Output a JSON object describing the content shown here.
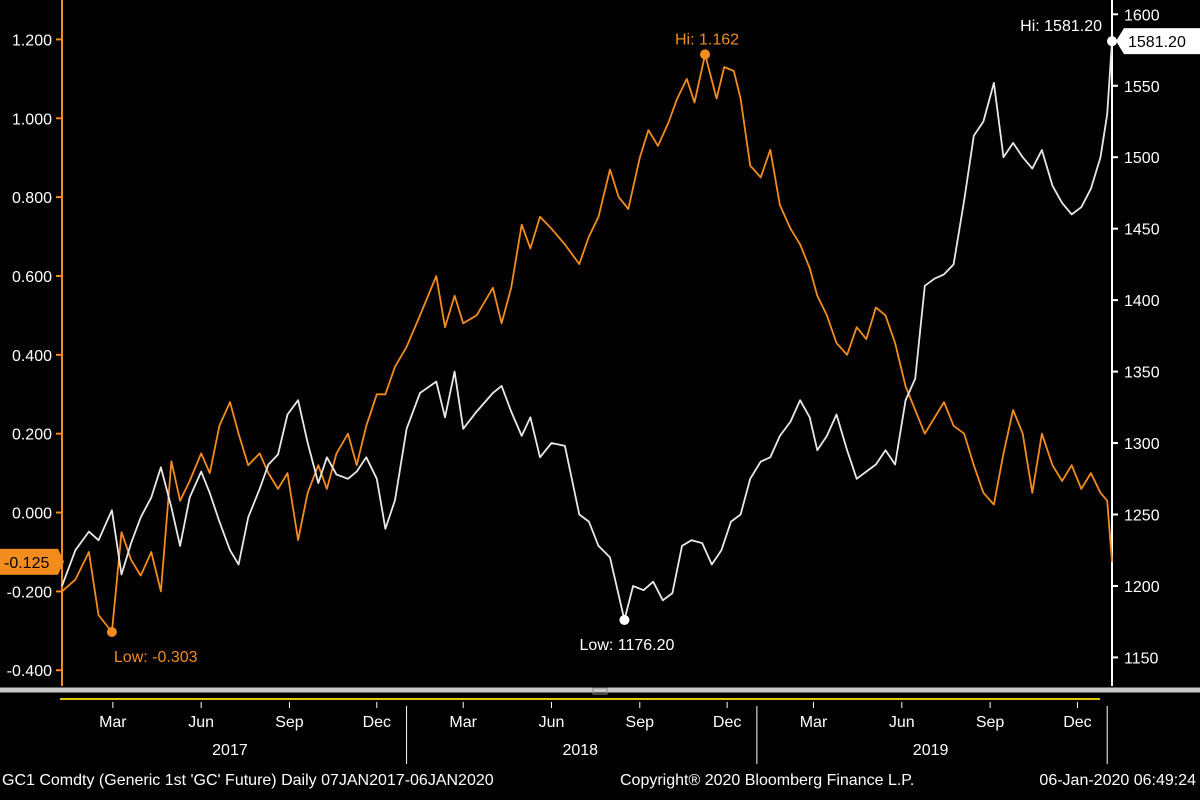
{
  "chart_data": {
    "type": "line",
    "grid": false,
    "x_range": [
      "2017-01-07",
      "2020-01-06"
    ],
    "left_axis": {
      "ylim": [
        -0.44,
        1.3
      ],
      "ticks": [
        "-0.400",
        "-0.200",
        "0.000",
        "0.200",
        "0.400",
        "0.600",
        "0.800",
        "1.000",
        "1.200"
      ]
    },
    "right_axis": {
      "ylim": [
        1130,
        1610
      ],
      "ticks": [
        "1150",
        "1200",
        "1250",
        "1300",
        "1350",
        "1400",
        "1450",
        "1500",
        "1550",
        "1600"
      ]
    },
    "month_ticks": [
      {
        "label": "Mar",
        "date": "2017-03-01"
      },
      {
        "label": "Jun",
        "date": "2017-06-01"
      },
      {
        "label": "Sep",
        "date": "2017-09-01"
      },
      {
        "label": "Dec",
        "date": "2017-12-01"
      },
      {
        "label": "Mar",
        "date": "2018-03-01"
      },
      {
        "label": "Jun",
        "date": "2018-06-01"
      },
      {
        "label": "Sep",
        "date": "2018-09-01"
      },
      {
        "label": "Dec",
        "date": "2018-12-01"
      },
      {
        "label": "Mar",
        "date": "2019-03-01"
      },
      {
        "label": "Jun",
        "date": "2019-06-01"
      },
      {
        "label": "Sep",
        "date": "2019-09-01"
      },
      {
        "label": "Dec",
        "date": "2019-12-01"
      }
    ],
    "year_labels": [
      {
        "label": "2017",
        "date": "2017-07-01"
      },
      {
        "label": "2018",
        "date": "2018-07-01"
      },
      {
        "label": "2019",
        "date": "2019-07-01"
      }
    ],
    "year_dividers": [
      "2018-01-01",
      "2019-01-01",
      "2020-01-01"
    ],
    "series": [
      {
        "color": "#f28c1e",
        "axis": "left",
        "last_value": -0.125,
        "last_label": "-0.125",
        "high": {
          "date": "2018-11-08",
          "value": 1.162,
          "label": "Hi: 1.162"
        },
        "low": {
          "date": "2017-02-28",
          "value": -0.303,
          "label": "Low: -0.303"
        },
        "points": [
          [
            "2017-01-07",
            -0.2
          ],
          [
            "2017-01-21",
            -0.17
          ],
          [
            "2017-02-04",
            -0.1
          ],
          [
            "2017-02-14",
            -0.26
          ],
          [
            "2017-02-28",
            -0.303
          ],
          [
            "2017-03-10",
            -0.05
          ],
          [
            "2017-03-20",
            -0.12
          ],
          [
            "2017-03-30",
            -0.16
          ],
          [
            "2017-04-10",
            -0.1
          ],
          [
            "2017-04-20",
            -0.2
          ],
          [
            "2017-05-01",
            0.13
          ],
          [
            "2017-05-10",
            0.03
          ],
          [
            "2017-05-20",
            0.08
          ],
          [
            "2017-06-01",
            0.15
          ],
          [
            "2017-06-10",
            0.1
          ],
          [
            "2017-06-20",
            0.22
          ],
          [
            "2017-07-01",
            0.28
          ],
          [
            "2017-07-10",
            0.2
          ],
          [
            "2017-07-20",
            0.12
          ],
          [
            "2017-08-01",
            0.15
          ],
          [
            "2017-08-10",
            0.1
          ],
          [
            "2017-08-20",
            0.06
          ],
          [
            "2017-08-30",
            0.1
          ],
          [
            "2017-09-10",
            -0.07
          ],
          [
            "2017-09-20",
            0.05
          ],
          [
            "2017-10-01",
            0.12
          ],
          [
            "2017-10-10",
            0.06
          ],
          [
            "2017-10-20",
            0.15
          ],
          [
            "2017-11-01",
            0.2
          ],
          [
            "2017-11-10",
            0.12
          ],
          [
            "2017-11-20",
            0.22
          ],
          [
            "2017-12-01",
            0.3
          ],
          [
            "2017-12-10",
            0.3
          ],
          [
            "2017-12-20",
            0.37
          ],
          [
            "2018-01-01",
            0.42
          ],
          [
            "2018-01-15",
            0.5
          ],
          [
            "2018-02-01",
            0.6
          ],
          [
            "2018-02-10",
            0.47
          ],
          [
            "2018-02-20",
            0.55
          ],
          [
            "2018-03-01",
            0.48
          ],
          [
            "2018-03-15",
            0.5
          ],
          [
            "2018-04-01",
            0.57
          ],
          [
            "2018-04-10",
            0.48
          ],
          [
            "2018-04-20",
            0.57
          ],
          [
            "2018-05-01",
            0.73
          ],
          [
            "2018-05-10",
            0.67
          ],
          [
            "2018-05-20",
            0.75
          ],
          [
            "2018-06-01",
            0.72
          ],
          [
            "2018-06-15",
            0.68
          ],
          [
            "2018-06-30",
            0.63
          ],
          [
            "2018-07-10",
            0.7
          ],
          [
            "2018-07-20",
            0.75
          ],
          [
            "2018-08-01",
            0.87
          ],
          [
            "2018-08-10",
            0.8
          ],
          [
            "2018-08-20",
            0.77
          ],
          [
            "2018-09-01",
            0.9
          ],
          [
            "2018-09-10",
            0.97
          ],
          [
            "2018-09-20",
            0.93
          ],
          [
            "2018-10-01",
            0.99
          ],
          [
            "2018-10-10",
            1.05
          ],
          [
            "2018-10-20",
            1.1
          ],
          [
            "2018-10-28",
            1.04
          ],
          [
            "2018-11-08",
            1.162
          ],
          [
            "2018-11-20",
            1.05
          ],
          [
            "2018-11-28",
            1.13
          ],
          [
            "2018-12-08",
            1.12
          ],
          [
            "2018-12-15",
            1.05
          ],
          [
            "2018-12-25",
            0.88
          ],
          [
            "2019-01-05",
            0.85
          ],
          [
            "2019-01-15",
            0.92
          ],
          [
            "2019-01-25",
            0.78
          ],
          [
            "2019-02-05",
            0.72
          ],
          [
            "2019-02-15",
            0.68
          ],
          [
            "2019-02-25",
            0.62
          ],
          [
            "2019-03-05",
            0.55
          ],
          [
            "2019-03-15",
            0.5
          ],
          [
            "2019-03-25",
            0.43
          ],
          [
            "2019-04-05",
            0.4
          ],
          [
            "2019-04-15",
            0.47
          ],
          [
            "2019-04-25",
            0.44
          ],
          [
            "2019-05-05",
            0.52
          ],
          [
            "2019-05-15",
            0.5
          ],
          [
            "2019-05-25",
            0.43
          ],
          [
            "2019-06-05",
            0.32
          ],
          [
            "2019-06-15",
            0.26
          ],
          [
            "2019-06-25",
            0.2
          ],
          [
            "2019-07-05",
            0.24
          ],
          [
            "2019-07-15",
            0.28
          ],
          [
            "2019-07-25",
            0.22
          ],
          [
            "2019-08-05",
            0.2
          ],
          [
            "2019-08-15",
            0.12
          ],
          [
            "2019-08-25",
            0.05
          ],
          [
            "2019-09-05",
            0.02
          ],
          [
            "2019-09-15",
            0.15
          ],
          [
            "2019-09-25",
            0.26
          ],
          [
            "2019-10-05",
            0.2
          ],
          [
            "2019-10-15",
            0.05
          ],
          [
            "2019-10-25",
            0.2
          ],
          [
            "2019-11-05",
            0.12
          ],
          [
            "2019-11-15",
            0.08
          ],
          [
            "2019-11-25",
            0.12
          ],
          [
            "2019-12-05",
            0.06
          ],
          [
            "2019-12-15",
            0.1
          ],
          [
            "2019-12-25",
            0.05
          ],
          [
            "2020-01-01",
            0.03
          ],
          [
            "2020-01-06",
            -0.125
          ]
        ]
      },
      {
        "color": "#e8e8e8",
        "axis": "right",
        "last_value": 1581.2,
        "last_label": "1581.20",
        "high": {
          "date": "2020-01-06",
          "value": 1581.2,
          "label": "Hi: 1581.20"
        },
        "low": {
          "date": "2018-08-16",
          "value": 1176.2,
          "label": "Low: 1176.20"
        },
        "points": [
          [
            "2017-01-07",
            1200
          ],
          [
            "2017-01-21",
            1225
          ],
          [
            "2017-02-04",
            1238
          ],
          [
            "2017-02-14",
            1232
          ],
          [
            "2017-02-28",
            1253
          ],
          [
            "2017-03-10",
            1208
          ],
          [
            "2017-03-20",
            1230
          ],
          [
            "2017-03-30",
            1248
          ],
          [
            "2017-04-10",
            1262
          ],
          [
            "2017-04-20",
            1283
          ],
          [
            "2017-05-01",
            1255
          ],
          [
            "2017-05-10",
            1228
          ],
          [
            "2017-05-20",
            1262
          ],
          [
            "2017-06-01",
            1280
          ],
          [
            "2017-06-10",
            1265
          ],
          [
            "2017-06-20",
            1245
          ],
          [
            "2017-07-01",
            1225
          ],
          [
            "2017-07-10",
            1215
          ],
          [
            "2017-07-20",
            1248
          ],
          [
            "2017-08-01",
            1268
          ],
          [
            "2017-08-10",
            1285
          ],
          [
            "2017-08-20",
            1292
          ],
          [
            "2017-08-30",
            1320
          ],
          [
            "2017-09-10",
            1330
          ],
          [
            "2017-09-20",
            1300
          ],
          [
            "2017-10-01",
            1272
          ],
          [
            "2017-10-10",
            1290
          ],
          [
            "2017-10-20",
            1278
          ],
          [
            "2017-11-01",
            1275
          ],
          [
            "2017-11-10",
            1280
          ],
          [
            "2017-11-20",
            1290
          ],
          [
            "2017-12-01",
            1275
          ],
          [
            "2017-12-10",
            1240
          ],
          [
            "2017-12-20",
            1260
          ],
          [
            "2018-01-01",
            1310
          ],
          [
            "2018-01-15",
            1335
          ],
          [
            "2018-02-01",
            1343
          ],
          [
            "2018-02-10",
            1318
          ],
          [
            "2018-02-20",
            1350
          ],
          [
            "2018-03-01",
            1310
          ],
          [
            "2018-03-15",
            1322
          ],
          [
            "2018-04-01",
            1335
          ],
          [
            "2018-04-10",
            1340
          ],
          [
            "2018-04-20",
            1322
          ],
          [
            "2018-05-01",
            1305
          ],
          [
            "2018-05-10",
            1318
          ],
          [
            "2018-05-20",
            1290
          ],
          [
            "2018-06-01",
            1300
          ],
          [
            "2018-06-15",
            1298
          ],
          [
            "2018-06-30",
            1250
          ],
          [
            "2018-07-10",
            1245
          ],
          [
            "2018-07-20",
            1228
          ],
          [
            "2018-08-01",
            1220
          ],
          [
            "2018-08-16",
            1176.2
          ],
          [
            "2018-08-25",
            1200
          ],
          [
            "2018-09-05",
            1197
          ],
          [
            "2018-09-15",
            1203
          ],
          [
            "2018-09-25",
            1190
          ],
          [
            "2018-10-05",
            1195
          ],
          [
            "2018-10-15",
            1228
          ],
          [
            "2018-10-25",
            1232
          ],
          [
            "2018-11-05",
            1230
          ],
          [
            "2018-11-15",
            1215
          ],
          [
            "2018-11-25",
            1225
          ],
          [
            "2018-12-05",
            1245
          ],
          [
            "2018-12-15",
            1250
          ],
          [
            "2018-12-25",
            1275
          ],
          [
            "2019-01-05",
            1287
          ],
          [
            "2019-01-15",
            1290
          ],
          [
            "2019-01-25",
            1305
          ],
          [
            "2019-02-05",
            1315
          ],
          [
            "2019-02-15",
            1330
          ],
          [
            "2019-02-25",
            1318
          ],
          [
            "2019-03-05",
            1295
          ],
          [
            "2019-03-15",
            1305
          ],
          [
            "2019-03-25",
            1320
          ],
          [
            "2019-04-05",
            1295
          ],
          [
            "2019-04-15",
            1275
          ],
          [
            "2019-04-25",
            1280
          ],
          [
            "2019-05-05",
            1285
          ],
          [
            "2019-05-15",
            1295
          ],
          [
            "2019-05-25",
            1285
          ],
          [
            "2019-06-05",
            1330
          ],
          [
            "2019-06-15",
            1345
          ],
          [
            "2019-06-25",
            1410
          ],
          [
            "2019-07-05",
            1415
          ],
          [
            "2019-07-15",
            1418
          ],
          [
            "2019-07-25",
            1425
          ],
          [
            "2019-08-05",
            1470
          ],
          [
            "2019-08-15",
            1515
          ],
          [
            "2019-08-25",
            1525
          ],
          [
            "2019-09-05",
            1552
          ],
          [
            "2019-09-15",
            1500
          ],
          [
            "2019-09-25",
            1510
          ],
          [
            "2019-10-05",
            1500
          ],
          [
            "2019-10-15",
            1492
          ],
          [
            "2019-10-25",
            1505
          ],
          [
            "2019-11-05",
            1480
          ],
          [
            "2019-11-15",
            1468
          ],
          [
            "2019-11-25",
            1460
          ],
          [
            "2019-12-05",
            1465
          ],
          [
            "2019-12-15",
            1478
          ],
          [
            "2019-12-25",
            1500
          ],
          [
            "2020-01-01",
            1530
          ],
          [
            "2020-01-06",
            1581.2
          ]
        ]
      }
    ]
  },
  "footer": {
    "left": "GC1 Comdty (Generic 1st 'GC' Future)  Daily 07JAN2017-06JAN2020",
    "middle": "Copyright® 2020 Bloomberg Finance L.P.",
    "right": "06-Jan-2020 06:49:24"
  },
  "colors": {
    "orange": "#f28c1e",
    "white": "#e8e8e8",
    "background": "#000000"
  }
}
